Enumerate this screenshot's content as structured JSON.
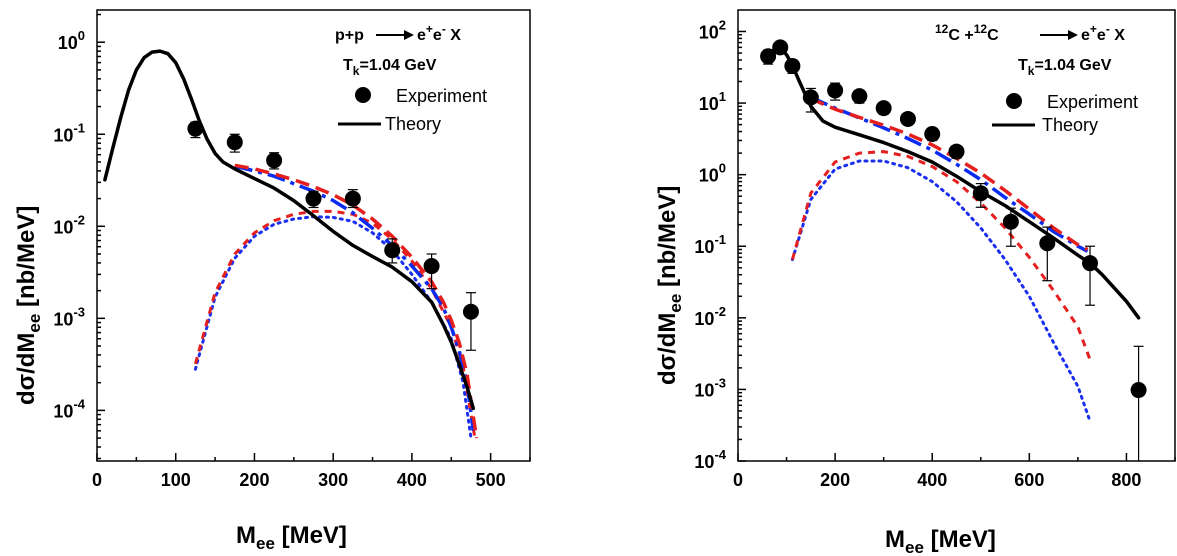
{
  "colors": {
    "theory": "#000000",
    "dash_dot_blue": "#0a2cf2",
    "dashed_red": "#e51e1e",
    "dotted_blue": "#1a2ff0",
    "dotted_red": "#e51e1e"
  },
  "chart_data": [
    {
      "type": "line",
      "scale_y": "log",
      "annotation": {
        "reaction_left": "p+p",
        "reaction_right": "e",
        "sup1": "+",
        "mid": "e",
        "sup2": "-",
        "tail": " X",
        "tk_main": "T",
        "tk_sub": "k",
        "tk_value": "=1.04 GeV"
      },
      "legend_experiment": "Experiment",
      "legend_theory": "Theory",
      "xlabel_main": "M",
      "xlabel_sub": "ee",
      "xlabel_unit": " [MeV]",
      "ylabel_pre": "dσ/dM",
      "ylabel_sub": "ee",
      "ylabel_unit": " [nb/MeV]",
      "xlim": [
        0,
        550
      ],
      "ylim_exp": [
        -4.55,
        0.35
      ],
      "xticks": [
        0,
        100,
        200,
        300,
        400,
        500
      ],
      "yticks_exp": [
        -4,
        -3,
        -2,
        -1,
        0
      ],
      "experiment": [
        {
          "x": 125,
          "y": 0.115,
          "lo": 0.092,
          "hi": 0.135
        },
        {
          "x": 175,
          "y": 0.082,
          "lo": 0.064,
          "hi": 0.1
        },
        {
          "x": 225,
          "y": 0.052,
          "lo": 0.042,
          "hi": 0.063
        },
        {
          "x": 275,
          "y": 0.02,
          "lo": 0.016,
          "hi": 0.024
        },
        {
          "x": 325,
          "y": 0.02,
          "lo": 0.016,
          "hi": 0.025
        },
        {
          "x": 375,
          "y": 0.0055,
          "lo": 0.004,
          "hi": 0.0073
        },
        {
          "x": 425,
          "y": 0.0037,
          "lo": 0.0021,
          "hi": 0.005
        },
        {
          "x": 475,
          "y": 0.00118,
          "lo": 0.00045,
          "hi": 0.0019
        }
      ],
      "theory": [
        [
          10,
          0.032
        ],
        [
          20,
          0.07
        ],
        [
          30,
          0.15
        ],
        [
          40,
          0.3
        ],
        [
          50,
          0.5
        ],
        [
          60,
          0.68
        ],
        [
          70,
          0.78
        ],
        [
          80,
          0.8
        ],
        [
          90,
          0.75
        ],
        [
          100,
          0.6
        ],
        [
          110,
          0.4
        ],
        [
          120,
          0.24
        ],
        [
          130,
          0.14
        ],
        [
          140,
          0.088
        ],
        [
          150,
          0.062
        ],
        [
          160,
          0.05
        ],
        [
          175,
          0.042
        ],
        [
          200,
          0.033
        ],
        [
          225,
          0.026
        ],
        [
          250,
          0.019
        ],
        [
          275,
          0.013
        ],
        [
          300,
          0.0088
        ],
        [
          325,
          0.0062
        ],
        [
          350,
          0.0047
        ],
        [
          375,
          0.0036
        ],
        [
          400,
          0.0025
        ],
        [
          425,
          0.0015
        ],
        [
          440,
          0.00085
        ],
        [
          450,
          0.00055
        ],
        [
          460,
          0.00032
        ],
        [
          470,
          0.00018
        ],
        [
          478,
          0.000105
        ]
      ],
      "dash_dot_blue": [
        [
          175,
          0.045
        ],
        [
          200,
          0.04
        ],
        [
          225,
          0.035
        ],
        [
          250,
          0.029
        ],
        [
          275,
          0.024
        ],
        [
          300,
          0.019
        ],
        [
          325,
          0.014
        ],
        [
          350,
          0.0095
        ],
        [
          375,
          0.0062
        ],
        [
          400,
          0.0037
        ],
        [
          425,
          0.0021
        ],
        [
          440,
          0.0013
        ],
        [
          450,
          0.0008
        ],
        [
          460,
          0.00045
        ],
        [
          470,
          0.0002
        ],
        [
          478,
          6e-05
        ]
      ],
      "dashed_red": [
        [
          175,
          0.046
        ],
        [
          200,
          0.042
        ],
        [
          225,
          0.037
        ],
        [
          250,
          0.032
        ],
        [
          275,
          0.027
        ],
        [
          300,
          0.022
        ],
        [
          325,
          0.017
        ],
        [
          350,
          0.012
        ],
        [
          375,
          0.0078
        ],
        [
          400,
          0.0046
        ],
        [
          425,
          0.0025
        ],
        [
          440,
          0.0015
        ],
        [
          450,
          0.00095
        ],
        [
          460,
          0.00055
        ],
        [
          470,
          0.00025
        ],
        [
          482,
          5e-05
        ]
      ],
      "dotted_blue": [
        [
          125,
          0.00028
        ],
        [
          150,
          0.0017
        ],
        [
          175,
          0.0045
        ],
        [
          200,
          0.0078
        ],
        [
          225,
          0.0105
        ],
        [
          250,
          0.012
        ],
        [
          275,
          0.0127
        ],
        [
          300,
          0.0125
        ],
        [
          325,
          0.0113
        ],
        [
          350,
          0.0085
        ],
        [
          375,
          0.0055
        ],
        [
          400,
          0.003
        ],
        [
          425,
          0.0015
        ],
        [
          450,
          0.0006
        ],
        [
          465,
          0.0002
        ],
        [
          475,
          5e-05
        ]
      ],
      "dotted_red": [
        [
          125,
          0.00032
        ],
        [
          150,
          0.0019
        ],
        [
          175,
          0.005
        ],
        [
          200,
          0.0085
        ],
        [
          225,
          0.0115
        ],
        [
          250,
          0.0135
        ],
        [
          275,
          0.0145
        ],
        [
          300,
          0.0145
        ],
        [
          325,
          0.0135
        ],
        [
          350,
          0.0108
        ],
        [
          375,
          0.0072
        ],
        [
          400,
          0.0042
        ],
        [
          425,
          0.0021
        ],
        [
          450,
          0.0008
        ],
        [
          465,
          0.0003
        ],
        [
          480,
          5e-05
        ]
      ]
    },
    {
      "type": "line",
      "scale_y": "log",
      "annotation": {
        "pre1": "12",
        "c1": "C +",
        "pre2": "12",
        "c2": "C",
        "rhs": "e",
        "sup1": "+",
        "mid": "e",
        "sup2": "-",
        "tail": " X",
        "tk_main": "T",
        "tk_sub": "k",
        "tk_value": "=1.04 GeV"
      },
      "legend_experiment": "Experiment",
      "legend_theory": "Theory",
      "xlabel_main": "M",
      "xlabel_sub": "ee",
      "xlabel_unit": " [MeV]",
      "ylabel_pre": "dσ/dM",
      "ylabel_sub": "ee",
      "ylabel_unit": " [nb/MeV]",
      "xlim": [
        0,
        900
      ],
      "ylim_exp": [
        -4,
        2.3
      ],
      "xticks": [
        0,
        200,
        400,
        600,
        800
      ],
      "yticks_exp": [
        -4,
        -3,
        -2,
        -1,
        0,
        1,
        2
      ],
      "experiment": [
        {
          "x": 62,
          "y": 45,
          "lo": 35,
          "hi": 55
        },
        {
          "x": 87,
          "y": 60,
          "lo": 50,
          "hi": 70
        },
        {
          "x": 112,
          "y": 33,
          "lo": 26,
          "hi": 40
        },
        {
          "x": 150,
          "y": 12,
          "lo": 7.5,
          "hi": 16
        },
        {
          "x": 200,
          "y": 15,
          "lo": 11,
          "hi": 19
        },
        {
          "x": 250,
          "y": 12.5,
          "lo": 10,
          "hi": 15
        },
        {
          "x": 300,
          "y": 8.5,
          "lo": 7,
          "hi": 10
        },
        {
          "x": 350,
          "y": 6,
          "lo": 5,
          "hi": 7
        },
        {
          "x": 400,
          "y": 3.7,
          "lo": 3,
          "hi": 4.4
        },
        {
          "x": 450,
          "y": 2.1,
          "lo": 1.7,
          "hi": 2.5
        },
        {
          "x": 500,
          "y": 0.55,
          "lo": 0.35,
          "hi": 0.75
        },
        {
          "x": 562,
          "y": 0.22,
          "lo": 0.1,
          "hi": 0.34
        },
        {
          "x": 637,
          "y": 0.11,
          "lo": 0.033,
          "hi": 0.185
        },
        {
          "x": 725,
          "y": 0.058,
          "lo": 0.015,
          "hi": 0.1
        },
        {
          "x": 825,
          "y": 0.00098,
          "lo": 0.0001,
          "hi": 0.004
        }
      ],
      "theory": [
        [
          62,
          50
        ],
        [
          75,
          56
        ],
        [
          87,
          60
        ],
        [
          100,
          47
        ],
        [
          112,
          34
        ],
        [
          125,
          21
        ],
        [
          150,
          9
        ],
        [
          175,
          5.6
        ],
        [
          200,
          4.6
        ],
        [
          250,
          3.6
        ],
        [
          300,
          2.8
        ],
        [
          350,
          2.1
        ],
        [
          400,
          1.5
        ],
        [
          450,
          0.95
        ],
        [
          500,
          0.58
        ],
        [
          550,
          0.37
        ],
        [
          600,
          0.22
        ],
        [
          650,
          0.13
        ],
        [
          700,
          0.075
        ],
        [
          725,
          0.058
        ],
        [
          750,
          0.04
        ],
        [
          800,
          0.017
        ],
        [
          825,
          0.01
        ]
      ],
      "dash_dot_blue": [
        [
          150,
          12
        ],
        [
          200,
          8.5
        ],
        [
          250,
          6.2
        ],
        [
          300,
          4.5
        ],
        [
          350,
          3.2
        ],
        [
          400,
          2.2
        ],
        [
          450,
          1.4
        ],
        [
          500,
          0.85
        ],
        [
          550,
          0.48
        ],
        [
          600,
          0.28
        ],
        [
          650,
          0.16
        ],
        [
          700,
          0.1
        ],
        [
          720,
          0.085
        ]
      ],
      "dashed_red": [
        [
          150,
          11.5
        ],
        [
          200,
          8.2
        ],
        [
          250,
          6.3
        ],
        [
          300,
          4.9
        ],
        [
          350,
          3.7
        ],
        [
          400,
          2.6
        ],
        [
          450,
          1.7
        ],
        [
          500,
          1.05
        ],
        [
          550,
          0.6
        ],
        [
          600,
          0.33
        ],
        [
          650,
          0.18
        ],
        [
          700,
          0.105
        ],
        [
          720,
          0.09
        ]
      ],
      "dotted_blue": [
        [
          112,
          0.065
        ],
        [
          150,
          0.45
        ],
        [
          200,
          1.2
        ],
        [
          250,
          1.55
        ],
        [
          300,
          1.55
        ],
        [
          350,
          1.25
        ],
        [
          400,
          0.8
        ],
        [
          450,
          0.42
        ],
        [
          500,
          0.18
        ],
        [
          550,
          0.065
        ],
        [
          600,
          0.02
        ],
        [
          650,
          0.0045
        ],
        [
          700,
          0.0011
        ],
        [
          725,
          0.00036
        ]
      ],
      "dotted_red": [
        [
          112,
          0.065
        ],
        [
          150,
          0.55
        ],
        [
          200,
          1.5
        ],
        [
          250,
          2.0
        ],
        [
          300,
          2.1
        ],
        [
          350,
          1.8
        ],
        [
          400,
          1.3
        ],
        [
          450,
          0.8
        ],
        [
          500,
          0.4
        ],
        [
          550,
          0.18
        ],
        [
          600,
          0.07
        ],
        [
          650,
          0.024
        ],
        [
          700,
          0.0075
        ],
        [
          725,
          0.0026
        ]
      ]
    }
  ]
}
